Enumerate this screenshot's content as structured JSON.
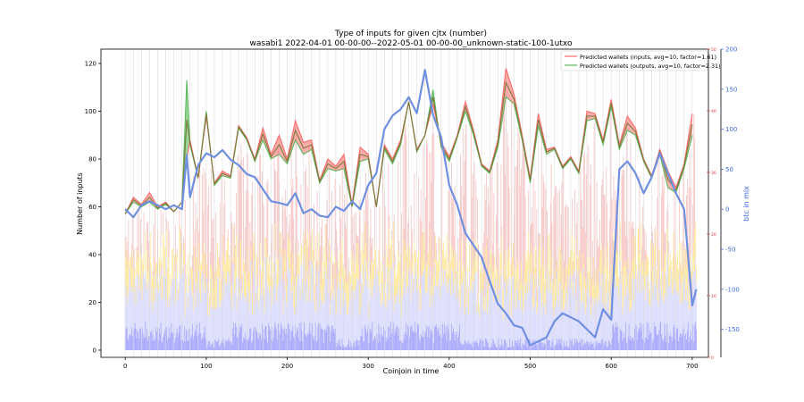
{
  "chart_data": {
    "type": "line",
    "title": "Type of inputs for given cjtx (number)",
    "subtitle": "wasabi1 2022-04-01 00-00-00--2022-05-01 00-00-00_unknown-static-100-1utxo",
    "xlabel": "Coinjoin in time",
    "ylabel": "Number of inputs",
    "y2label": "btc in mix",
    "xlim": [
      -30,
      720
    ],
    "ylim": [
      -3,
      126
    ],
    "y2lim": [
      -185,
      200
    ],
    "y3lim": [
      0,
      50
    ],
    "xticks": [
      0,
      100,
      200,
      300,
      400,
      500,
      600,
      700
    ],
    "yticks": [
      0,
      20,
      40,
      60,
      80,
      100,
      120
    ],
    "y2ticks": [
      -150,
      -100,
      -50,
      0,
      50,
      100,
      150,
      200
    ],
    "y3ticks": [
      0,
      10,
      20,
      30,
      40,
      50
    ],
    "legend_position": "top-right",
    "grid": "vertical lines only",
    "colors": {
      "inputs": "#ff6b6b",
      "outputs": "#5cb85c",
      "combined_line": "#7a7a3a",
      "fill_inputs": "#ff8080",
      "fill_outputs": "#60c060",
      "btc": "#6f8fe0",
      "right_axis": "#4169e1",
      "third_axis": "#e03030",
      "bar_blue": "#a8a8ff",
      "bar_light_blue": "#dcdcff",
      "bar_yellow": "#ffe9a0",
      "bar_pink": "#f8c8c8"
    },
    "series": [
      {
        "name": "Predicted wallets (inputs, avg=10, factor=1.61)",
        "x": [
          0,
          10,
          20,
          30,
          40,
          50,
          60,
          70,
          76,
          80,
          90,
          100,
          110,
          120,
          130,
          140,
          150,
          160,
          170,
          180,
          190,
          200,
          210,
          220,
          230,
          240,
          250,
          260,
          270,
          280,
          290,
          300,
          310,
          320,
          330,
          340,
          350,
          360,
          370,
          380,
          390,
          400,
          410,
          420,
          430,
          440,
          450,
          460,
          470,
          480,
          490,
          500,
          510,
          520,
          530,
          540,
          550,
          560,
          570,
          580,
          590,
          600,
          610,
          620,
          630,
          640,
          650,
          660,
          670,
          680,
          690,
          700
        ],
        "values": [
          57,
          64,
          61,
          66,
          60,
          62,
          58,
          62,
          80,
          88,
          72,
          98,
          70,
          75,
          73,
          94,
          89,
          80,
          93,
          82,
          90,
          80,
          96,
          87,
          88,
          71,
          80,
          77,
          82,
          61,
          85,
          82,
          60,
          86,
          80,
          88,
          104,
          84,
          90,
          103,
          87,
          81,
          90,
          104,
          92,
          78,
          75,
          88,
          118,
          107,
          90,
          72,
          99,
          84,
          85,
          77,
          81,
          75,
          100,
          99,
          88,
          105,
          86,
          98,
          93,
          80,
          73,
          84,
          75,
          68,
          78,
          99
        ]
      },
      {
        "name": "Predicted wallets (outputs, avg=10, factor=2.31)",
        "x": [
          0,
          10,
          20,
          30,
          40,
          50,
          60,
          70,
          76,
          80,
          90,
          100,
          110,
          120,
          130,
          140,
          150,
          160,
          170,
          180,
          190,
          200,
          210,
          220,
          230,
          240,
          250,
          260,
          270,
          280,
          290,
          300,
          310,
          320,
          330,
          340,
          350,
          360,
          370,
          380,
          390,
          400,
          410,
          420,
          430,
          440,
          450,
          460,
          470,
          480,
          490,
          500,
          510,
          520,
          530,
          540,
          550,
          560,
          570,
          580,
          590,
          600,
          610,
          620,
          630,
          640,
          650,
          660,
          670,
          680,
          690,
          700
        ],
        "values": [
          57,
          62,
          60,
          62,
          59,
          61,
          58,
          62,
          113,
          86,
          72,
          100,
          69,
          73,
          72,
          93,
          88,
          79,
          88,
          80,
          82,
          78,
          88,
          82,
          84,
          70,
          76,
          75,
          76,
          60,
          79,
          80,
          60,
          84,
          78,
          86,
          104,
          83,
          90,
          109,
          85,
          79,
          89,
          100,
          90,
          77,
          74,
          85,
          106,
          103,
          88,
          70,
          94,
          82,
          84,
          76,
          80,
          74,
          96,
          97,
          86,
          102,
          84,
          92,
          90,
          79,
          72,
          82,
          68,
          66,
          76,
          90
        ]
      },
      {
        "name": "btc in mix",
        "axis": "right",
        "x": [
          0,
          10,
          20,
          30,
          40,
          50,
          60,
          70,
          76,
          80,
          90,
          100,
          110,
          120,
          130,
          140,
          150,
          160,
          170,
          180,
          190,
          200,
          210,
          220,
          230,
          240,
          250,
          260,
          270,
          280,
          290,
          300,
          310,
          320,
          330,
          340,
          350,
          360,
          370,
          380,
          390,
          400,
          410,
          420,
          430,
          440,
          450,
          460,
          470,
          480,
          490,
          500,
          510,
          520,
          530,
          540,
          550,
          560,
          570,
          580,
          590,
          600,
          610,
          620,
          630,
          640,
          650,
          660,
          670,
          680,
          690,
          700,
          705
        ],
        "values": [
          0,
          -10,
          5,
          10,
          5,
          0,
          5,
          0,
          68,
          15,
          55,
          70,
          65,
          74,
          62,
          55,
          44,
          40,
          25,
          10,
          8,
          5,
          20,
          -5,
          0,
          -8,
          -10,
          3,
          -2,
          10,
          0,
          30,
          45,
          100,
          117,
          125,
          140,
          120,
          174,
          118,
          90,
          30,
          5,
          -30,
          -45,
          -60,
          -90,
          -118,
          -130,
          -145,
          -148,
          -170,
          -165,
          -160,
          -140,
          -130,
          -135,
          -140,
          -150,
          -160,
          -125,
          -138,
          50,
          60,
          45,
          20,
          40,
          70,
          45,
          20,
          0,
          -120,
          -100
        ]
      }
    ]
  }
}
